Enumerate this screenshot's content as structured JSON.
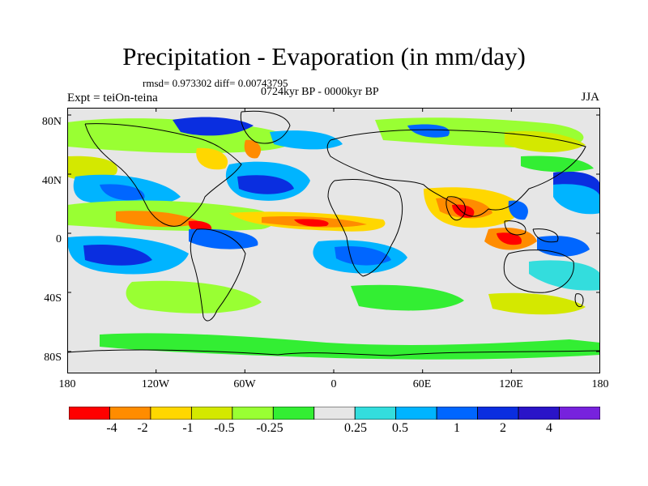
{
  "header": {
    "title": "Precipitation - Evaporation (in mm/day)",
    "stats": "rmsd= 0.973302 diff= 0.00743795",
    "period": "0724kyr BP - 0000kyr BP",
    "expt": "Expt = teiOn-teina",
    "season": "JJA"
  },
  "map": {
    "lat_labels": [
      "80N",
      "40N",
      "0",
      "40S",
      "80S"
    ],
    "lon_labels": [
      "180",
      "120W",
      "60W",
      "0",
      "60E",
      "120E",
      "180"
    ],
    "background_color": "#e6e6e6"
  },
  "colorbar": {
    "colors": [
      "#ff0000",
      "#ff8c00",
      "#ffd700",
      "#d4e800",
      "#99ff33",
      "#33ee33",
      "#e6e6e6",
      "#33dddd",
      "#00b4ff",
      "#0066ff",
      "#0a2ee0",
      "#2a14c8",
      "#7722dd"
    ],
    "labels": [
      "-4",
      "-2",
      "-1",
      "-0.5",
      "-0.25",
      "0.25",
      "0.5",
      "1",
      "2",
      "4"
    ]
  }
}
